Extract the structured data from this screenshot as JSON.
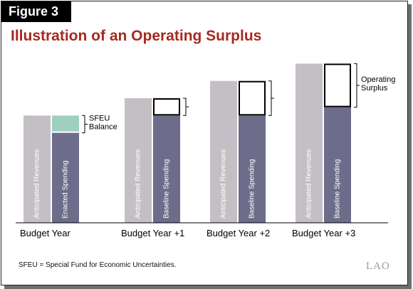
{
  "figure_label": "Figure 3",
  "title": "Illustration of an Operating Surplus",
  "footnote": "SFEU = Special Fund for Economic Uncertainties.",
  "logo_text": "LAO",
  "colors": {
    "revenue": "#c3bfc4",
    "spending": "#6d6c8a",
    "sfeu": "#9ecfc0",
    "surplus_fill": "#ffffff",
    "title": "#a52a1f"
  },
  "chart_data": {
    "type": "bar",
    "title": "Illustration of an Operating Surplus",
    "categories": [
      "Budget Year",
      "Budget Year +1",
      "Budget Year +2",
      "Budget Year +3"
    ],
    "series": [
      {
        "name": "Anticipated Revenues",
        "values": [
          155,
          180,
          205,
          230
        ]
      },
      {
        "name": "Spending",
        "values": [
          130,
          155,
          155,
          167
        ]
      }
    ],
    "spending_labels": [
      "Enacted Spending",
      "Baseline Spending",
      "Baseline Spending",
      "Baseline Spending"
    ],
    "gap_types": [
      "sfeu",
      "surplus",
      "surplus",
      "surplus"
    ],
    "annotations": [
      {
        "text": [
          "SFEU",
          "Balance"
        ],
        "category": 0
      },
      {
        "text": [
          "Operating",
          "Surplus"
        ],
        "category": 3
      }
    ],
    "ylim": [
      0,
      240
    ],
    "grid": false
  }
}
